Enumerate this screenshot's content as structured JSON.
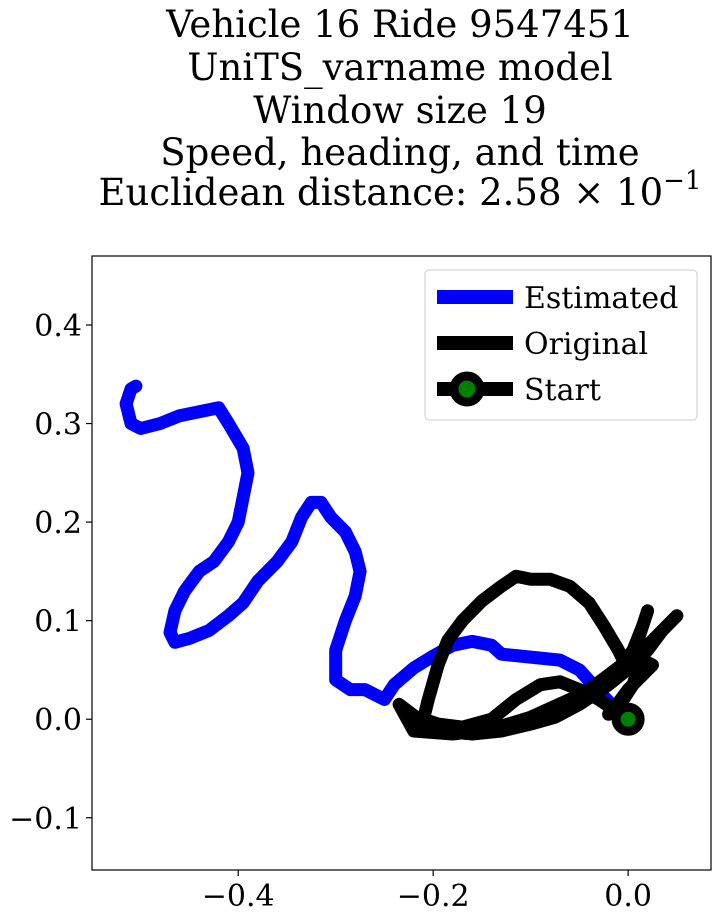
{
  "chart_data": {
    "type": "line",
    "title_lines": [
      "Vehicle 16 Ride 9547451",
      "UniTS_varname model",
      "Window size 19",
      "Speed, heading, and time",
      "Euclidean distance: 2.58 × 10",
      "−1"
    ],
    "xlabel": "",
    "ylabel": "",
    "xlim": [
      -0.55,
      0.085
    ],
    "ylim": [
      -0.153,
      0.47
    ],
    "x_ticks": [
      -0.4,
      -0.2,
      0.0
    ],
    "x_tick_labels": [
      "−0.4",
      "−0.2",
      "0.0"
    ],
    "y_ticks": [
      -0.1,
      0.0,
      0.1,
      0.2,
      0.3,
      0.4
    ],
    "y_tick_labels": [
      "−0.1",
      "0.0",
      "0.1",
      "0.2",
      "0.3",
      "0.4"
    ],
    "grid": false,
    "legend_position": "top-right",
    "series": [
      {
        "name": "Estimated",
        "color": "#0000ff",
        "points": [
          [
            0.0,
            0.0
          ],
          [
            -0.01,
            0.008
          ],
          [
            -0.02,
            0.018
          ],
          [
            -0.03,
            0.028
          ],
          [
            -0.05,
            0.05
          ],
          [
            -0.07,
            0.06
          ],
          [
            -0.09,
            0.062
          ],
          [
            -0.11,
            0.064
          ],
          [
            -0.13,
            0.066
          ],
          [
            -0.14,
            0.075
          ],
          [
            -0.16,
            0.079
          ],
          [
            -0.18,
            0.075
          ],
          [
            -0.2,
            0.064
          ],
          [
            -0.22,
            0.052
          ],
          [
            -0.24,
            0.035
          ],
          [
            -0.25,
            0.02
          ],
          [
            -0.26,
            0.025
          ],
          [
            -0.27,
            0.03
          ],
          [
            -0.285,
            0.03
          ],
          [
            -0.3,
            0.04
          ],
          [
            -0.3,
            0.07
          ],
          [
            -0.29,
            0.1
          ],
          [
            -0.28,
            0.125
          ],
          [
            -0.275,
            0.15
          ],
          [
            -0.28,
            0.17
          ],
          [
            -0.29,
            0.19
          ],
          [
            -0.305,
            0.205
          ],
          [
            -0.315,
            0.22
          ],
          [
            -0.325,
            0.22
          ],
          [
            -0.335,
            0.205
          ],
          [
            -0.345,
            0.18
          ],
          [
            -0.36,
            0.16
          ],
          [
            -0.38,
            0.14
          ],
          [
            -0.395,
            0.118
          ],
          [
            -0.41,
            0.105
          ],
          [
            -0.43,
            0.09
          ],
          [
            -0.45,
            0.082
          ],
          [
            -0.465,
            0.078
          ],
          [
            -0.47,
            0.088
          ],
          [
            -0.465,
            0.11
          ],
          [
            -0.455,
            0.13
          ],
          [
            -0.44,
            0.15
          ],
          [
            -0.425,
            0.16
          ],
          [
            -0.41,
            0.18
          ],
          [
            -0.4,
            0.2
          ],
          [
            -0.395,
            0.225
          ],
          [
            -0.39,
            0.25
          ],
          [
            -0.395,
            0.275
          ],
          [
            -0.41,
            0.3
          ],
          [
            -0.42,
            0.316
          ],
          [
            -0.44,
            0.312
          ],
          [
            -0.46,
            0.308
          ],
          [
            -0.48,
            0.3
          ],
          [
            -0.5,
            0.295
          ],
          [
            -0.51,
            0.3
          ],
          [
            -0.515,
            0.32
          ],
          [
            -0.51,
            0.335
          ],
          [
            -0.505,
            0.338
          ]
        ]
      },
      {
        "name": "Original",
        "color": "#000000",
        "points": [
          [
            0.0,
            0.0
          ],
          [
            -0.015,
            0.01
          ],
          [
            -0.03,
            0.02
          ],
          [
            -0.05,
            0.03
          ],
          [
            -0.07,
            0.038
          ],
          [
            -0.09,
            0.035
          ],
          [
            -0.115,
            0.02
          ],
          [
            -0.14,
            0.0
          ],
          [
            -0.17,
            -0.008
          ],
          [
            -0.195,
            -0.005
          ],
          [
            -0.21,
            0.0
          ],
          [
            -0.205,
            0.02
          ],
          [
            -0.195,
            0.055
          ],
          [
            -0.185,
            0.08
          ],
          [
            -0.17,
            0.1
          ],
          [
            -0.15,
            0.12
          ],
          [
            -0.13,
            0.135
          ],
          [
            -0.115,
            0.145
          ],
          [
            -0.1,
            0.142
          ],
          [
            -0.08,
            0.142
          ],
          [
            -0.06,
            0.135
          ],
          [
            -0.04,
            0.118
          ],
          [
            -0.025,
            0.095
          ],
          [
            -0.01,
            0.07
          ],
          [
            0.0,
            0.05
          ],
          [
            0.01,
            0.08
          ],
          [
            0.02,
            0.11
          ],
          [
            0.015,
            0.095
          ],
          [
            0.005,
            0.07
          ],
          [
            -0.01,
            0.05
          ],
          [
            -0.03,
            0.035
          ],
          [
            -0.06,
            0.02
          ],
          [
            -0.1,
            0.002
          ],
          [
            -0.14,
            -0.01
          ],
          [
            -0.18,
            -0.015
          ],
          [
            -0.22,
            -0.012
          ],
          [
            -0.235,
            0.015
          ],
          [
            -0.215,
            0.0
          ],
          [
            -0.19,
            -0.012
          ],
          [
            -0.16,
            -0.015
          ],
          [
            -0.13,
            -0.012
          ],
          [
            -0.1,
            -0.005
          ],
          [
            -0.075,
            0.002
          ],
          [
            -0.05,
            0.015
          ],
          [
            -0.02,
            0.035
          ],
          [
            0.005,
            0.055
          ],
          [
            0.02,
            0.07
          ],
          [
            0.035,
            0.09
          ],
          [
            0.05,
            0.105
          ],
          [
            0.04,
            0.095
          ],
          [
            0.02,
            0.075
          ],
          [
            0.0,
            0.06
          ],
          [
            -0.02,
            0.045
          ],
          [
            -0.04,
            0.03
          ],
          [
            -0.06,
            0.015
          ],
          [
            -0.03,
            0.035
          ],
          [
            -0.005,
            0.05
          ],
          [
            0.015,
            0.06
          ],
          [
            0.025,
            0.055
          ],
          [
            0.0,
            0.03
          ],
          [
            -0.015,
            0.01
          ],
          [
            -0.02,
            0.005
          ],
          [
            -0.005,
            0.02
          ],
          [
            0.005,
            0.035
          ],
          [
            0.01,
            0.05
          ]
        ]
      },
      {
        "name": "Start",
        "color": "#000000",
        "marker_face_color": "#008000",
        "points": [
          [
            0.0,
            0.0
          ]
        ]
      }
    ]
  }
}
